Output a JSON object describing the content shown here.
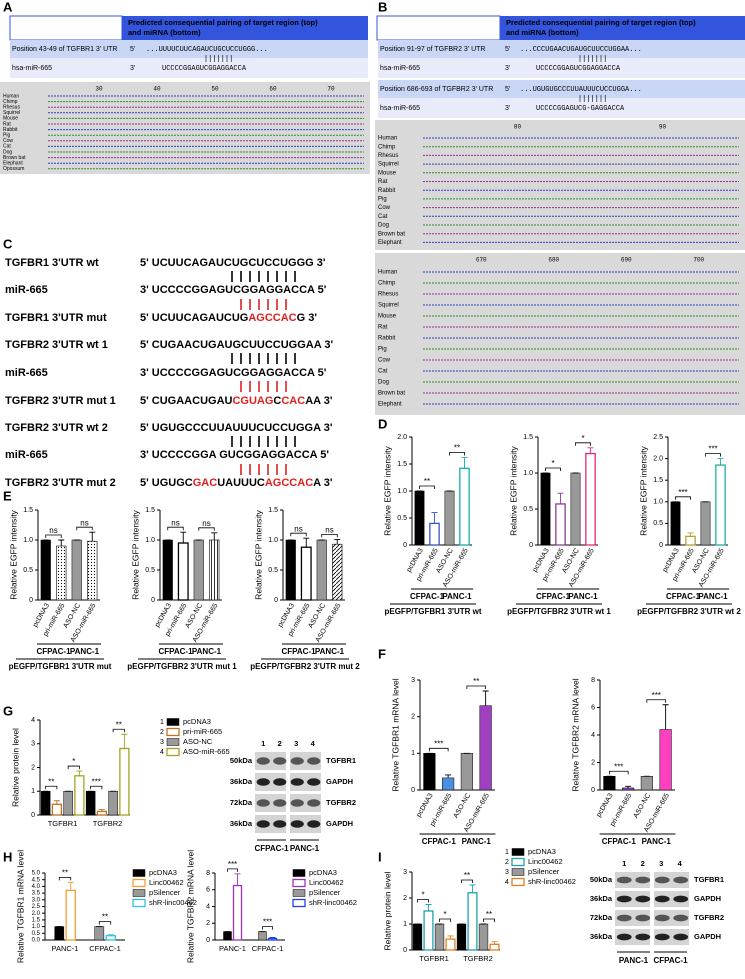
{
  "panel_labels": [
    "A",
    "B",
    "C",
    "D",
    "E",
    "F",
    "G",
    "H",
    "I"
  ],
  "panel_a": {
    "header": [
      "Predicted consequential pairing of target region (top)",
      "and miRNA (bottom)"
    ],
    "position": "Position 43-49 of TGFBR1 3' UTR",
    "target_end": "5'",
    "target": "...UUUUCUUCAGAUCUGCUCCUGGG...",
    "mirna": "hsa-miR-665",
    "mirna_end": "3'",
    "mirna_seq": "UCCCCGGAGUCGGAGGACCA",
    "alignment": {
      "ruler": [
        "30",
        "40",
        "50",
        "60",
        "70"
      ],
      "species": [
        "Human",
        "Chimp",
        "Rhesus",
        "Squirrel",
        "Mouse",
        "Rat",
        "Rabbit",
        "Pig",
        "Cow",
        "Cat",
        "Dog",
        "Brown bat",
        "Elephant",
        "Opossum"
      ]
    }
  },
  "panel_b": {
    "header": [
      "Predicted consequential pairing of target region (top)",
      "and miRNA (bottom)"
    ],
    "sites": [
      {
        "position": "Position 91-97 of TGFBR2 3' UTR",
        "target_end": "5'",
        "target": "...CCCUGAACUGAUGCUUCCUGGAA...",
        "mirna": "hsa-miR-665",
        "mirna_end": "3'",
        "mirna_seq": "UCCCCGGAGUCGGAGGACCA"
      },
      {
        "position": "Position 686-693 of TGFBR2 3' UTR",
        "target_end": "5'",
        "target": "...UGUGUGCCCUUAUUUCUCCUGGA...",
        "mirna": "hsa-miR-665",
        "mirna_end": "3'",
        "mirna_seq": "UCCCCGGAGUCG-GAGGACCA"
      }
    ],
    "alignments": [
      {
        "ruler": [
          "80",
          "90"
        ],
        "species": [
          "Human",
          "Chimp",
          "Rhesus",
          "Squirrel",
          "Mouse",
          "Rat",
          "Rabbit",
          "Pig",
          "Cow",
          "Cat",
          "Dog",
          "Brown bat",
          "Elephant"
        ]
      },
      {
        "ruler": [
          "670",
          "680",
          "690",
          "700"
        ],
        "species": [
          "Human",
          "Chimp",
          "Rhesus",
          "Squirrel",
          "Mouse",
          "Rat",
          "Rabbit",
          "Pig",
          "Cow",
          "Cat",
          "Dog",
          "Brown bat",
          "Elephant"
        ]
      }
    ]
  },
  "panel_c": {
    "rows": [
      {
        "label": "TGFBR1 3'UTR wt",
        "segments": [
          {
            "text": "5' UCUUCAGAUCUGCUCCUGGG 3'",
            "color": "#000000"
          }
        ]
      },
      {
        "label": "miR-665",
        "segments": [
          {
            "text": "3' UCCCCGGAGUCGGAGGACCA 5'",
            "color": "#000000"
          }
        ]
      },
      {
        "label": "TGFBR1 3'UTR mut",
        "segments": [
          {
            "text": "5' UCUUCAGAUCUG",
            "color": "#000000"
          },
          {
            "text": "AGCCAC",
            "color": "#e02020"
          },
          {
            "text": "G 3'",
            "color": "#000000"
          }
        ]
      },
      {
        "label": "TGFBR2 3'UTR wt 1",
        "segments": [
          {
            "text": "5' CUGAACUGAUGCUUCCUGGAA 3'",
            "color": "#000000"
          }
        ]
      },
      {
        "label": "miR-665",
        "segments": [
          {
            "text": "3' UCCCCGGAGUCGGAGGACCA 5'",
            "color": "#000000"
          }
        ]
      },
      {
        "label": "TGFBR2 3'UTR mut 1",
        "segments": [
          {
            "text": "5' CUGAACUGAU",
            "color": "#000000"
          },
          {
            "text": "CGUAG",
            "color": "#e02020"
          },
          {
            "text": "C",
            "color": "#000000"
          },
          {
            "text": "CAC",
            "color": "#e02020"
          },
          {
            "text": "AA 3'",
            "color": "#000000"
          }
        ]
      },
      {
        "label": "TGFBR2 3'UTR wt 2",
        "segments": [
          {
            "text": "5' UGUGCCCUUAUUUCUCCUGGA 3'",
            "color": "#000000"
          }
        ]
      },
      {
        "label": "miR-665",
        "segments": [
          {
            "text": "3' UCCCCGGA GUCGGAGGACCA 5'",
            "color": "#000000"
          }
        ]
      },
      {
        "label": "TGFBR2 3'UTR mut 2",
        "segments": [
          {
            "text": "5' UGUGC",
            "color": "#000000"
          },
          {
            "text": "GAC",
            "color": "#e02020"
          },
          {
            "text": "UAUUUC",
            "color": "#000000"
          },
          {
            "text": "AGCCAC",
            "color": "#e02020"
          },
          {
            "text": "A 3'",
            "color": "#000000"
          }
        ]
      }
    ]
  },
  "chart_data": [
    {
      "type": "bar",
      "ylabel": "Relative EGFP intensity",
      "categories": [
        "pcDNA3",
        "pri-miR-665",
        "ASO-NC",
        "ASO-miR-665"
      ],
      "values": [
        1,
        0.4,
        1,
        1.42
      ],
      "errors": [
        0,
        0.2,
        0,
        0.2
      ],
      "colors": [
        "#000000",
        "#3355cc",
        "#999999",
        "#10b0b0"
      ],
      "fills": [
        "solid",
        "outline",
        "solid",
        "outline"
      ],
      "ylim": [
        0,
        2
      ],
      "yticks": [
        0,
        0.5,
        {
          "value": 1,
          "label": "1.0"
        },
        1.5,
        {
          "value": 2,
          "label": "2.0"
        }
      ],
      "significance": [
        "**",
        "**"
      ],
      "groups": [
        "CFPAC-1",
        "PANC-1"
      ],
      "caption": "pEGFP/TGFBR1 3'UTR wt"
    },
    {
      "type": "bar",
      "ylabel": "Relative EGFP intensity",
      "categories": [
        "pcDNA3",
        "pri-miR-665",
        "ASO-NC",
        "ASO-miR-665"
      ],
      "values": [
        1,
        0.57,
        1,
        1.27
      ],
      "errors": [
        0,
        0.15,
        0,
        0.08
      ],
      "colors": [
        "#000000",
        "#8b3a9c",
        "#999999",
        "#e0287a"
      ],
      "fills": [
        "solid",
        "outline",
        "solid",
        "outline"
      ],
      "ylim": [
        0,
        1.5
      ],
      "yticks": [
        0,
        0.5,
        {
          "value": 1,
          "label": "1.0"
        },
        1.5
      ],
      "significance": [
        "*",
        "*"
      ],
      "groups": [
        "CFPAC-1",
        "PANC-1"
      ],
      "caption": "pEGFP/TGFBR2 3'UTR wt 1"
    },
    {
      "type": "bar",
      "ylabel": "Relative EGFP intensity",
      "categories": [
        "pcDNA3",
        "pri-miR-665",
        "ASO-NC",
        "ASO-miR-665"
      ],
      "values": [
        1,
        0.2,
        1,
        1.85
      ],
      "errors": [
        0,
        0.08,
        0,
        0.15
      ],
      "colors": [
        "#000000",
        "#b8a030",
        "#999999",
        "#20b0a0"
      ],
      "fills": [
        "solid",
        "outline",
        "solid",
        "outline"
      ],
      "ylim": [
        0,
        2.5
      ],
      "yticks": [
        0,
        0.5,
        {
          "value": 1,
          "label": "1.0"
        },
        1.5,
        {
          "value": 2,
          "label": "2.0"
        },
        2.5
      ],
      "significance": [
        "***",
        "***"
      ],
      "groups": [
        "CFPAC-1",
        "PANC-1"
      ],
      "caption": "pEGFP/TGFBR2 3'UTR wt 2"
    },
    {
      "type": "bar",
      "ylabel": "Relative EGFP intensity",
      "categories": [
        "pcDNA3",
        "pri-miR-665",
        "ASO-NC",
        "ASO-miR-665"
      ],
      "values": [
        1,
        0.9,
        1,
        0.98
      ],
      "errors": [
        0,
        0.1,
        0,
        0.15
      ],
      "colors": [
        "#000000",
        "#000000",
        "#999999",
        "#000000"
      ],
      "fills": [
        "solid",
        "dots",
        "solid",
        "dots"
      ],
      "ylim": [
        0,
        1.5
      ],
      "yticks": [
        0,
        0.5,
        {
          "value": 1,
          "label": "1.0"
        },
        1.5
      ],
      "significance": [
        "ns",
        "ns"
      ],
      "groups": [
        "CFPAC-1",
        "PANC-1"
      ],
      "caption": "pEGFP/TGFBR1 3'UTR mut"
    },
    {
      "type": "bar",
      "ylabel": "Relative EGFP intensity",
      "categories": [
        "pcDNA3",
        "pri-miR-665",
        "ASO-NC",
        "ASO-miR-665"
      ],
      "values": [
        1,
        0.95,
        1,
        1.0
      ],
      "errors": [
        0,
        0.18,
        0,
        0.12
      ],
      "colors": [
        "#000000",
        "#000000",
        "#999999",
        "#000000"
      ],
      "fills": [
        "solid",
        "outline",
        "solid",
        "vstripes"
      ],
      "ylim": [
        0,
        1.5
      ],
      "yticks": [
        0,
        0.5,
        {
          "value": 1,
          "label": "1.0"
        },
        1.5
      ],
      "significance": [
        "ns",
        "ns"
      ],
      "groups": [
        "CFPAC-1",
        "PANC-1"
      ],
      "caption": "pEGFP/TGFBR2 3'UTR mut 1"
    },
    {
      "type": "bar",
      "ylabel": "Relative EGFP intensity",
      "categories": [
        "pcDNA3",
        "pri-miR-665",
        "ASO-NC",
        "ASO-miR-665"
      ],
      "values": [
        1,
        0.88,
        1,
        0.93
      ],
      "errors": [
        0,
        0.15,
        0,
        0.08
      ],
      "colors": [
        "#000000",
        "#000000",
        "#999999",
        "#000000"
      ],
      "fills": [
        "solid",
        "outline",
        "solid",
        "diag"
      ],
      "ylim": [
        0,
        1.5
      ],
      "yticks": [
        0,
        0.5,
        {
          "value": 1,
          "label": "1.0"
        },
        1.5
      ],
      "significance": [
        "ns",
        "ns"
      ],
      "groups": [
        "CFPAC-1",
        "PANC-1"
      ],
      "caption": "pEGFP/TGFBR2 3'UTR mut 2"
    },
    {
      "type": "bar",
      "ylabel": "Relative TGFBR1 mRNA level",
      "categories": [
        "pcDNA3",
        "pri-miR-665",
        "ASO-NC",
        "ASO-miR-665"
      ],
      "values": [
        1,
        0.33,
        1,
        2.3
      ],
      "errors": [
        0,
        0.08,
        0,
        0.4
      ],
      "colors": [
        "#000000",
        "#4a90e0",
        "#999999",
        "#a040c0"
      ],
      "fills": [
        "solid",
        "solid",
        "solid",
        "solid"
      ],
      "ylim": [
        0,
        3
      ],
      "yticks": [
        0,
        1,
        2,
        3
      ],
      "significance": [
        "***",
        "**"
      ],
      "groups": [
        "CFPAC-1",
        "PANC-1"
      ]
    },
    {
      "type": "bar",
      "ylabel": "Relative TGFBR2 mRNA level",
      "categories": [
        "pcDNA3",
        "pri-miR-665",
        "ASO-NC",
        "ASO-miR-665"
      ],
      "values": [
        1,
        0.15,
        1,
        4.4
      ],
      "errors": [
        0,
        0.12,
        0,
        1.8
      ],
      "colors": [
        "#000000",
        "#9040c0",
        "#999999",
        "#ff40c0"
      ],
      "fills": [
        "solid",
        "solid",
        "solid",
        "solid"
      ],
      "ylim": [
        0,
        8
      ],
      "yticks": [
        0,
        2,
        4,
        6,
        8
      ],
      "significance": [
        "***",
        "***"
      ],
      "groups": [
        "CFPAC-1",
        "PANC-1"
      ]
    },
    {
      "type": "grouped_bar",
      "ylabel": "Relative protein level",
      "categories": [
        "TGFBR1",
        "TGFBR2"
      ],
      "series": [
        {
          "name": "pcDNA3",
          "color": "#000000",
          "style": "solid",
          "values": [
            1,
            1
          ],
          "errors": [
            0,
            0
          ]
        },
        {
          "name": "pri-miR-665",
          "color": "#c07020",
          "style": "outline",
          "values": [
            0.45,
            0.15
          ],
          "errors": [
            0.15,
            0.08
          ]
        },
        {
          "name": "ASO-NC",
          "color": "#999999",
          "style": "solid",
          "values": [
            1,
            1
          ],
          "errors": [
            0,
            0
          ]
        },
        {
          "name": "ASO-miR-665",
          "color": "#a8a020",
          "style": "outline",
          "values": [
            1.65,
            2.8
          ],
          "errors": [
            0.2,
            0.6
          ]
        }
      ],
      "legend_numbers": [
        "1",
        "2",
        "3",
        "4"
      ],
      "ylim": [
        0,
        4
      ],
      "yticks": [
        0,
        1,
        2,
        3,
        4
      ],
      "significance": [
        "**",
        "*",
        "***",
        "**"
      ]
    },
    {
      "type": "grouped_bar",
      "ylabel": "Relative TGFBR1 mRNA level",
      "categories": [
        "PANC-1",
        "CFPAC-1"
      ],
      "series": [
        {
          "name": "pcDNA3",
          "color": "#000000",
          "style": "solid",
          "values": [
            1,
            null
          ],
          "errors": [
            0,
            null
          ]
        },
        {
          "name": "Linc00462",
          "color": "#f0a030",
          "style": "outline",
          "values": [
            3.7,
            null
          ],
          "errors": [
            0.6,
            null
          ]
        },
        {
          "name": "pSilencer",
          "color": "#999999",
          "style": "solid",
          "values": [
            null,
            1
          ],
          "errors": [
            null,
            0
          ]
        },
        {
          "name": "shR-linc00462",
          "color": "#30c0e0",
          "style": "outline",
          "values": [
            null,
            0.32
          ],
          "errors": [
            null,
            0.08
          ]
        }
      ],
      "ylim": [
        0,
        5
      ],
      "yticks": [
        {
          "value": 0,
          "label": "0.0"
        },
        0.5,
        {
          "value": 1,
          "label": "1.0"
        },
        1.5,
        {
          "value": 2,
          "label": "2.0"
        },
        2.5,
        {
          "value": 3,
          "label": "3.0"
        },
        3.5,
        {
          "value": 4,
          "label": "4.0"
        },
        4.5,
        {
          "value": 5,
          "label": "5.0"
        }
      ],
      "significance": [
        "**",
        "**"
      ]
    },
    {
      "type": "grouped_bar",
      "ylabel": "Relative TGFBR2 mRNA level",
      "categories": [
        "PANC-1",
        "CFPAC-1"
      ],
      "series": [
        {
          "name": "pcDNA3",
          "color": "#000000",
          "style": "solid",
          "values": [
            1,
            null
          ],
          "errors": [
            0,
            null
          ]
        },
        {
          "name": "Linc00462",
          "color": "#a030c0",
          "style": "outline",
          "values": [
            6.5,
            null
          ],
          "errors": [
            1.4,
            null
          ]
        },
        {
          "name": "pSilencer",
          "color": "#999999",
          "style": "solid",
          "values": [
            null,
            1
          ],
          "errors": [
            null,
            0
          ]
        },
        {
          "name": "shR-linc00462",
          "color": "#2040e0",
          "style": "outline",
          "values": [
            null,
            0.18
          ],
          "errors": [
            null,
            0.12
          ]
        }
      ],
      "ylim": [
        0,
        8
      ],
      "yticks": [
        0,
        2,
        4,
        6,
        8
      ],
      "significance": [
        "***",
        "***"
      ]
    },
    {
      "type": "grouped_bar",
      "ylabel": "Relative protein level",
      "categories": [
        "TGFBR1",
        "TGFBR2"
      ],
      "series": [
        {
          "name": "pcDNA3",
          "color": "#000000",
          "style": "solid",
          "values": [
            1,
            1
          ],
          "errors": [
            0,
            0
          ]
        },
        {
          "name": "Linc00462",
          "color": "#20a0b0",
          "style": "outline",
          "values": [
            1.5,
            2.2
          ],
          "errors": [
            0.25,
            0.3
          ]
        },
        {
          "name": "pSilencer",
          "color": "#999999",
          "style": "solid",
          "values": [
            1,
            1
          ],
          "errors": [
            0,
            0
          ]
        },
        {
          "name": "shR-linc00462",
          "color": "#e08020",
          "style": "outline",
          "values": [
            0.42,
            0.22
          ],
          "errors": [
            0.12,
            0.1
          ]
        }
      ],
      "legend_numbers": [
        "1",
        "2",
        "3",
        "4"
      ],
      "ylim": [
        0,
        3
      ],
      "yticks": [
        0,
        1,
        2,
        3
      ],
      "significance": [
        "*",
        "*",
        "**",
        "**"
      ]
    }
  ],
  "blots": [
    {
      "lanes": [
        "1",
        "2",
        "3",
        "4"
      ],
      "markers": [
        "50kDa",
        "36kDa",
        "72kDa",
        "36kDa"
      ],
      "proteins": [
        "TGFBR1",
        "GAPDH",
        "TGFBR2",
        "GAPDH"
      ],
      "cells": [
        "CFPAC-1",
        "PANC-1"
      ]
    },
    {
      "lanes": [
        "1",
        "2",
        "3",
        "4"
      ],
      "markers": [
        "50kDa",
        "36kDa",
        "72kDa",
        "36kDa"
      ],
      "proteins": [
        "TGFBR1",
        "GAPDH",
        "TGFBR2",
        "GAPDH"
      ],
      "cells": [
        "PANC-1",
        "CFPAC-1"
      ]
    }
  ]
}
